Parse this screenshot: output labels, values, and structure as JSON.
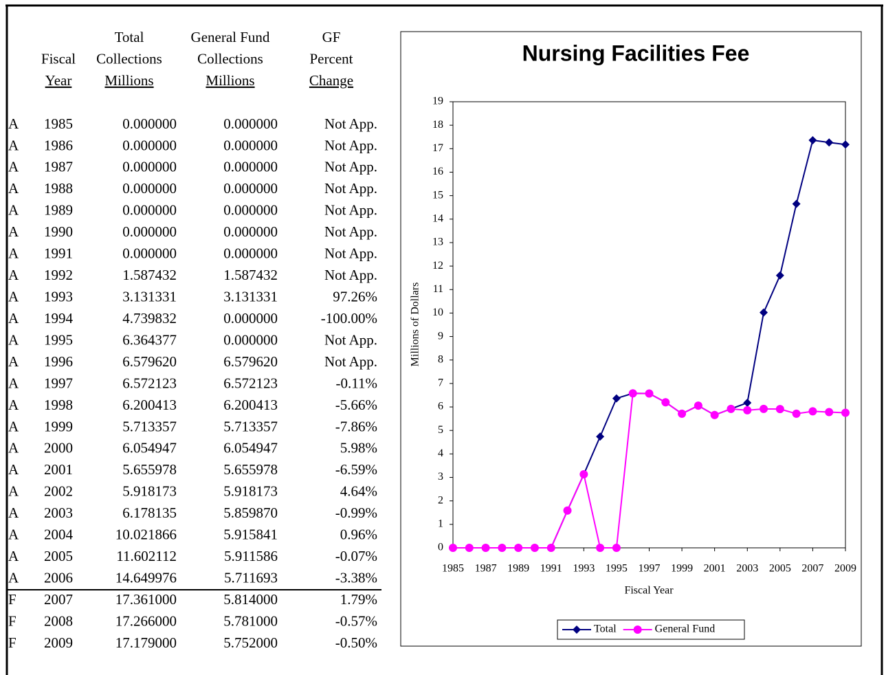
{
  "table": {
    "headers": [
      [
        "Fiscal",
        "Year"
      ],
      [
        "Total",
        "Collections",
        "Millions"
      ],
      [
        "General Fund",
        "Collections",
        "Millions"
      ],
      [
        "GF",
        "Percent",
        "Change"
      ]
    ],
    "rows": [
      [
        "A",
        "1985",
        "0.000000",
        "0.000000",
        "Not App."
      ],
      [
        "A",
        "1986",
        "0.000000",
        "0.000000",
        "Not App."
      ],
      [
        "A",
        "1987",
        "0.000000",
        "0.000000",
        "Not App."
      ],
      [
        "A",
        "1988",
        "0.000000",
        "0.000000",
        "Not App."
      ],
      [
        "A",
        "1989",
        "0.000000",
        "0.000000",
        "Not App."
      ],
      [
        "A",
        "1990",
        "0.000000",
        "0.000000",
        "Not App."
      ],
      [
        "A",
        "1991",
        "0.000000",
        "0.000000",
        "Not App."
      ],
      [
        "A",
        "1992",
        "1.587432",
        "1.587432",
        "Not App."
      ],
      [
        "A",
        "1993",
        "3.131331",
        "3.131331",
        "97.26%"
      ],
      [
        "A",
        "1994",
        "4.739832",
        "0.000000",
        "-100.00%"
      ],
      [
        "A",
        "1995",
        "6.364377",
        "0.000000",
        "Not App."
      ],
      [
        "A",
        "1996",
        "6.579620",
        "6.579620",
        "Not App."
      ],
      [
        "A",
        "1997",
        "6.572123",
        "6.572123",
        "-0.11%"
      ],
      [
        "A",
        "1998",
        "6.200413",
        "6.200413",
        "-5.66%"
      ],
      [
        "A",
        "1999",
        "5.713357",
        "5.713357",
        "-7.86%"
      ],
      [
        "A",
        "2000",
        "6.054947",
        "6.054947",
        "5.98%"
      ],
      [
        "A",
        "2001",
        "5.655978",
        "5.655978",
        "-6.59%"
      ],
      [
        "A",
        "2002",
        "5.918173",
        "5.918173",
        "4.64%"
      ],
      [
        "A",
        "2003",
        "6.178135",
        "5.859870",
        "-0.99%"
      ],
      [
        "A",
        "2004",
        "10.021866",
        "5.915841",
        "0.96%"
      ],
      [
        "A",
        "2005",
        "11.602112",
        "5.911586",
        "-0.07%"
      ],
      [
        "A",
        "2006",
        "14.649976",
        "5.711693",
        "-3.38%"
      ],
      [
        "F",
        "2007",
        "17.361000",
        "5.814000",
        "1.79%"
      ],
      [
        "F",
        "2008",
        "17.266000",
        "5.781000",
        "-0.57%"
      ],
      [
        "F",
        "2009",
        "17.179000",
        "5.752000",
        "-0.50%"
      ]
    ]
  },
  "chart_data": {
    "type": "line",
    "title": "Nursing Facilities Fee",
    "x_label": "Fiscal Year",
    "y_label": "Millions of Dollars",
    "x": [
      1985,
      1986,
      1987,
      1988,
      1989,
      1990,
      1991,
      1992,
      1993,
      1994,
      1995,
      1996,
      1997,
      1998,
      1999,
      2000,
      2001,
      2002,
      2003,
      2004,
      2005,
      2006,
      2007,
      2008,
      2009
    ],
    "series": [
      {
        "name": "Total",
        "color": "#000080",
        "marker": "diamond",
        "values": [
          0,
          0,
          0,
          0,
          0,
          0,
          0,
          1.587432,
          3.131331,
          4.739832,
          6.364377,
          6.57962,
          6.572123,
          6.200413,
          5.713357,
          6.054947,
          5.655978,
          5.918173,
          6.178135,
          10.021866,
          11.602112,
          14.649976,
          17.361,
          17.266,
          17.179
        ]
      },
      {
        "name": "General Fund",
        "color": "#ff00ff",
        "marker": "circle",
        "values": [
          0,
          0,
          0,
          0,
          0,
          0,
          0,
          1.587432,
          3.131331,
          0,
          0,
          6.57962,
          6.572123,
          6.200413,
          5.713357,
          6.054947,
          5.655978,
          5.918173,
          5.85987,
          5.915841,
          5.911586,
          5.711693,
          5.814,
          5.781,
          5.752
        ]
      }
    ],
    "xlim": [
      1985,
      2009
    ],
    "xticks": [
      1985,
      1987,
      1989,
      1991,
      1993,
      1995,
      1997,
      1999,
      2001,
      2003,
      2005,
      2007,
      2009
    ],
    "ylim": [
      0,
      19
    ],
    "yticks": [
      0,
      1,
      2,
      3,
      4,
      5,
      6,
      7,
      8,
      9,
      10,
      11,
      12,
      13,
      14,
      15,
      16,
      17,
      18,
      19
    ],
    "legend": "bottom"
  }
}
